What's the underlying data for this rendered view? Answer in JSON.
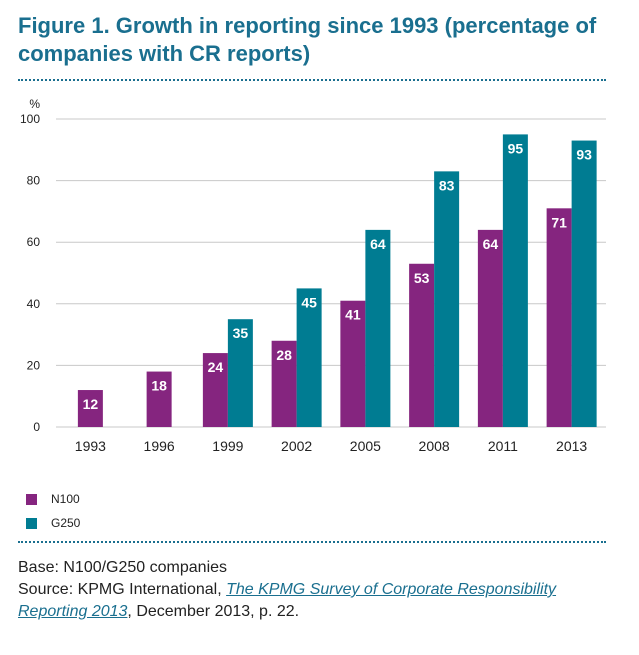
{
  "title": "Figure 1. Growth in reporting since 1993 (percentage of companies with CR reports)",
  "chart_data": {
    "type": "bar",
    "title": "Figure 1. Growth in reporting since 1993 (percentage of companies with CR reports)",
    "ylabel": "%",
    "xlabel": "",
    "ylim": [
      0,
      100
    ],
    "yticks": [
      0,
      20,
      40,
      60,
      80,
      100
    ],
    "grid": true,
    "legend_position": "bottom-left",
    "categories": [
      "1993",
      "1996",
      "1999",
      "2002",
      "2005",
      "2008",
      "2011",
      "2013"
    ],
    "series": [
      {
        "name": "N100",
        "color": "#85257f",
        "values": [
          12,
          18,
          24,
          28,
          41,
          53,
          64,
          71
        ]
      },
      {
        "name": "G250",
        "color": "#007c92",
        "values": [
          null,
          null,
          35,
          45,
          64,
          83,
          95,
          93
        ]
      }
    ]
  },
  "notes": {
    "base": "Base: N100/G250 companies",
    "source_prefix": "Source: KPMG International, ",
    "source_link": "The KPMG Survey of Corporate Responsibility Reporting 2013",
    "source_suffix": ", December 2013, p. 22."
  }
}
